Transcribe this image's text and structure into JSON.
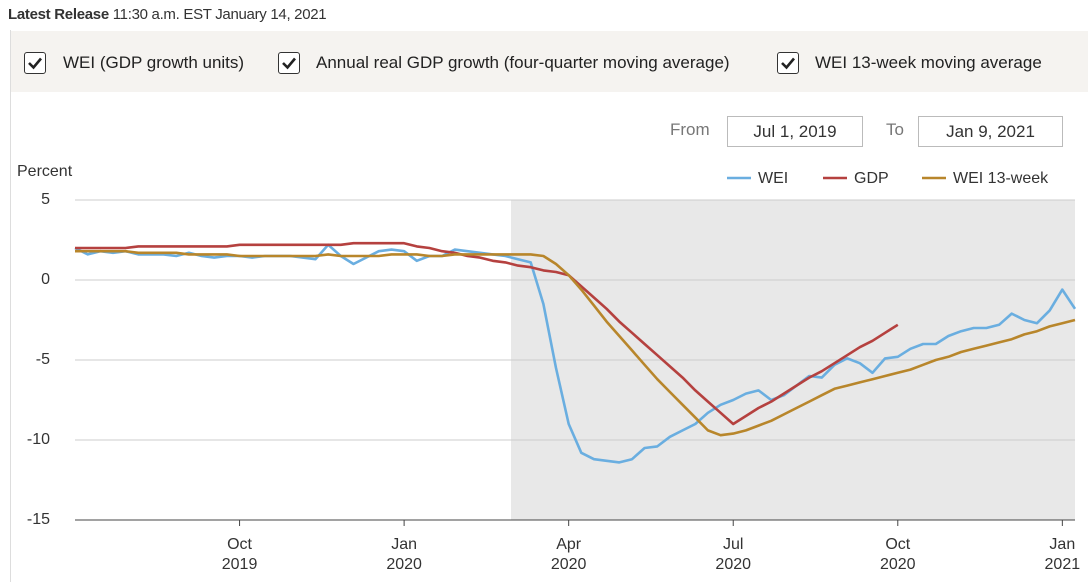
{
  "header": {
    "label": "Latest Release",
    "text": "11:30 a.m. EST January 14, 2021"
  },
  "toggles": [
    {
      "label": "WEI (GDP growth units)",
      "checked": true
    },
    {
      "label": "Annual real GDP growth (four-quarter moving average)",
      "checked": true
    },
    {
      "label": "WEI 13-week moving average",
      "checked": true
    }
  ],
  "range": {
    "from_label": "From",
    "from": "Jul 1, 2019",
    "to_label": "To",
    "to": "Jan 9, 2021"
  },
  "chart_data": {
    "type": "line",
    "ylabel": "Percent",
    "categories": [
      null,
      null,
      null,
      null,
      null,
      null,
      null,
      null,
      null,
      null,
      null,
      null,
      null,
      "Oct\n2019",
      null,
      null,
      null,
      null,
      null,
      null,
      null,
      null,
      null,
      null,
      null,
      null,
      "Jan\n2020",
      null,
      null,
      null,
      null,
      null,
      null,
      null,
      null,
      null,
      null,
      null,
      null,
      "Apr\n2020",
      null,
      null,
      null,
      null,
      null,
      null,
      null,
      null,
      null,
      null,
      null,
      null,
      "Jul\n2020",
      null,
      null,
      null,
      null,
      null,
      null,
      null,
      null,
      null,
      null,
      null,
      null,
      "Oct\n2020",
      null,
      null,
      null,
      null,
      null,
      null,
      null,
      null,
      null,
      null,
      null,
      null,
      "Jan\n2021",
      null
    ],
    "series": [
      {
        "name": "WEI",
        "color": "#6aaee0",
        "values": [
          2.0,
          1.6,
          1.8,
          1.7,
          1.8,
          1.6,
          1.6,
          1.6,
          1.5,
          1.7,
          1.5,
          1.4,
          1.5,
          1.5,
          1.4,
          1.5,
          1.5,
          1.5,
          1.4,
          1.3,
          2.2,
          1.5,
          1.0,
          1.4,
          1.8,
          1.9,
          1.8,
          1.2,
          1.5,
          1.5,
          1.9,
          1.8,
          1.7,
          1.6,
          1.5,
          1.3,
          1.1,
          -1.5,
          -5.5,
          -9.0,
          -10.8,
          -11.2,
          -11.3,
          -11.4,
          -11.2,
          -10.5,
          -10.4,
          -9.8,
          -9.4,
          -9.0,
          -8.3,
          -7.8,
          -7.5,
          -7.1,
          -6.9,
          -7.5,
          -7.2,
          -6.6,
          -6.0,
          -6.1,
          -5.3,
          -4.9,
          -5.2,
          -5.8,
          -4.9,
          -4.8,
          -4.3,
          -4.0,
          -4.0,
          -3.5,
          -3.2,
          -3.0,
          -3.0,
          -2.8,
          -2.1,
          -2.5,
          -2.7,
          -1.9,
          -0.6,
          -1.8
        ]
      },
      {
        "name": "GDP",
        "color": "#b5413f",
        "values": [
          2.0,
          2.0,
          2.0,
          2.0,
          2.0,
          2.1,
          2.1,
          2.1,
          2.1,
          2.1,
          2.1,
          2.1,
          2.1,
          2.2,
          2.2,
          2.2,
          2.2,
          2.2,
          2.2,
          2.2,
          2.2,
          2.2,
          2.3,
          2.3,
          2.3,
          2.3,
          2.3,
          2.1,
          2.0,
          1.8,
          1.7,
          1.5,
          1.4,
          1.2,
          1.1,
          0.9,
          0.8,
          0.6,
          0.5,
          0.3,
          -0.4,
          -1.1,
          -1.8,
          -2.6,
          -3.3,
          -4.0,
          -4.7,
          -5.4,
          -6.1,
          -6.9,
          -7.6,
          -8.3,
          -9.0,
          -8.5,
          -8.0,
          -7.6,
          -7.1,
          -6.6,
          -6.1,
          -5.7,
          -5.2,
          -4.7,
          -4.2,
          -3.8,
          -3.3,
          -2.8,
          null,
          null,
          null,
          null,
          null,
          null,
          null,
          null,
          null,
          null,
          null,
          null,
          null,
          null
        ]
      },
      {
        "name": "WEI 13-week",
        "color": "#b8862b",
        "values": [
          1.8,
          1.8,
          1.8,
          1.8,
          1.8,
          1.7,
          1.7,
          1.7,
          1.7,
          1.6,
          1.6,
          1.6,
          1.6,
          1.5,
          1.5,
          1.5,
          1.5,
          1.5,
          1.5,
          1.5,
          1.6,
          1.5,
          1.5,
          1.5,
          1.5,
          1.6,
          1.6,
          1.6,
          1.5,
          1.5,
          1.6,
          1.6,
          1.6,
          1.6,
          1.6,
          1.6,
          1.6,
          1.5,
          1.0,
          0.3,
          -0.6,
          -1.6,
          -2.6,
          -3.5,
          -4.4,
          -5.3,
          -6.2,
          -7.0,
          -7.8,
          -8.6,
          -9.4,
          -9.7,
          -9.6,
          -9.4,
          -9.1,
          -8.8,
          -8.4,
          -8.0,
          -7.6,
          -7.2,
          -6.8,
          -6.6,
          -6.4,
          -6.2,
          -6.0,
          -5.8,
          -5.6,
          -5.3,
          -5.0,
          -4.8,
          -4.5,
          -4.3,
          -4.1,
          -3.9,
          -3.7,
          -3.4,
          -3.2,
          -2.9,
          -2.7,
          -2.5
        ]
      }
    ],
    "ylim": [
      -15,
      5
    ],
    "yticks": [
      -15,
      -10,
      -5,
      0,
      5
    ],
    "grid": true,
    "legend": "top-right"
  }
}
